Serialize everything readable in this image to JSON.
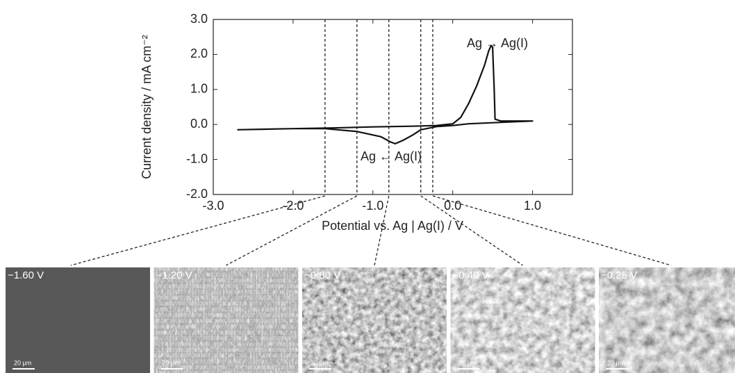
{
  "chart_data": {
    "type": "line",
    "xlabel": "Potential vs. Ag | Ag(I) / V",
    "ylabel": "Current density / mA cm⁻²",
    "annotations": [
      "Ag → Ag(I)",
      "Ag ← Ag(I)"
    ],
    "x": [
      -2.7,
      -2.0,
      -1.5,
      -1.0,
      -0.5,
      -0.2,
      0.0,
      0.1,
      0.2,
      0.3,
      0.4,
      0.45,
      0.48,
      0.5,
      0.52,
      0.53,
      0.6,
      1.0,
      0.8,
      0.5,
      0.2,
      0.0,
      -0.2,
      -0.4,
      -0.5,
      -0.62,
      -0.72,
      -0.78,
      -0.9,
      -1.2,
      -1.6,
      -2.0,
      -2.7
    ],
    "series": [
      {
        "color": "#111111",
        "values": [
          -0.15,
          -0.12,
          -0.1,
          -0.07,
          -0.05,
          -0.03,
          0.02,
          0.2,
          0.6,
          1.1,
          1.7,
          2.1,
          2.25,
          2.2,
          1.0,
          0.15,
          0.1,
          0.1,
          0.08,
          0.05,
          0.02,
          -0.03,
          -0.06,
          -0.15,
          -0.3,
          -0.45,
          -0.55,
          -0.5,
          -0.35,
          -0.2,
          -0.12,
          -0.12,
          -0.15
        ]
      }
    ],
    "xlim": [
      -3.0,
      1.5
    ],
    "ylim": [
      -2.0,
      3.0
    ],
    "xticks": [
      {
        "value": -3.0,
        "label": "-3.0"
      },
      {
        "value": -2.0,
        "label": "-2.0"
      },
      {
        "value": -1.0,
        "label": "-1.0"
      },
      {
        "value": 0.0,
        "label": "0.0"
      },
      {
        "value": 1.0,
        "label": "1.0"
      }
    ],
    "yticks": [
      {
        "value": -2.0,
        "label": "-2.0"
      },
      {
        "value": -1.0,
        "label": "-1.0"
      },
      {
        "value": 0.0,
        "label": "0.0"
      },
      {
        "value": 1.0,
        "label": "1.0"
      },
      {
        "value": 2.0,
        "label": "2.0"
      },
      {
        "value": 3.0,
        "label": "3.0"
      }
    ],
    "markers": [
      {
        "value": -1.6,
        "label": "−1.60 V",
        "scale_bar": "20 μm"
      },
      {
        "value": -1.2,
        "label": "−1.20 V",
        "scale_bar": "20 μm"
      },
      {
        "value": -0.8,
        "label": "−0.80 V",
        "scale_bar": "20 μm"
      },
      {
        "value": -0.4,
        "label": "−0.40 V",
        "scale_bar": "20 μm"
      },
      {
        "value": -0.25,
        "label": "−0.25 V",
        "scale_bar": "20 μm"
      }
    ]
  }
}
